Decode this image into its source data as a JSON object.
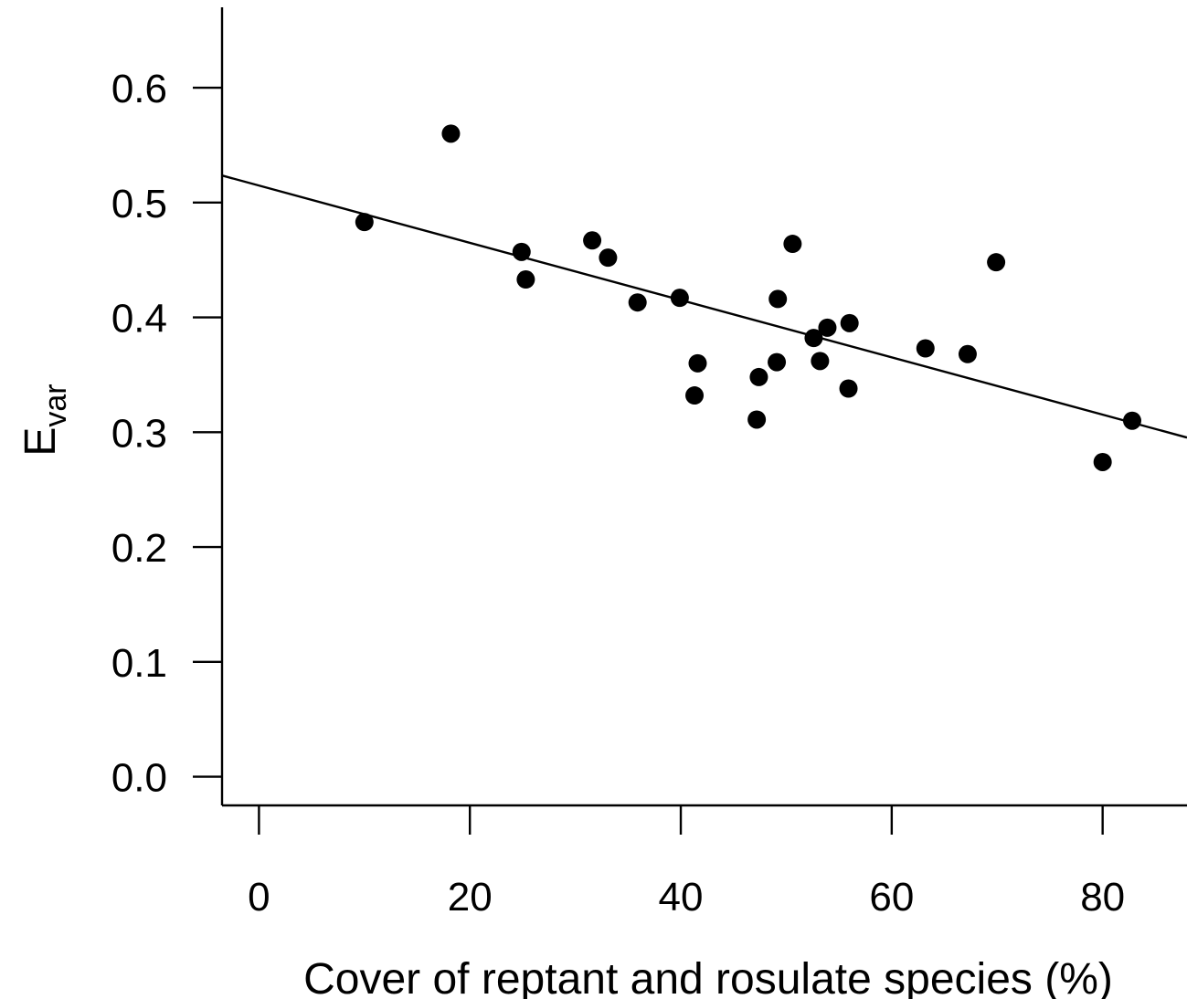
{
  "chart_data": {
    "type": "scatter",
    "xlabel": "Cover of reptant and rosulate species (%)",
    "ylabel": {
      "main": "E",
      "subscript": "var"
    },
    "xlim": [
      -3.5,
      88
    ],
    "ylim": [
      -0.025,
      0.67
    ],
    "x_ticks": [
      0,
      20,
      40,
      60,
      80
    ],
    "x_tick_labels": [
      "0",
      "20",
      "40",
      "60",
      "80"
    ],
    "y_ticks": [
      0.0,
      0.1,
      0.2,
      0.3,
      0.4,
      0.5,
      0.6
    ],
    "y_tick_labels": [
      "0.0",
      "0.1",
      "0.2",
      "0.3",
      "0.4",
      "0.5",
      "0.6"
    ],
    "grid": false,
    "legend": "none",
    "points": [
      {
        "x": 10.0,
        "y": 0.483
      },
      {
        "x": 18.2,
        "y": 0.56
      },
      {
        "x": 24.9,
        "y": 0.457
      },
      {
        "x": 25.3,
        "y": 0.433
      },
      {
        "x": 31.6,
        "y": 0.467
      },
      {
        "x": 33.1,
        "y": 0.452
      },
      {
        "x": 35.9,
        "y": 0.413
      },
      {
        "x": 39.9,
        "y": 0.417
      },
      {
        "x": 41.3,
        "y": 0.332
      },
      {
        "x": 41.6,
        "y": 0.36
      },
      {
        "x": 47.2,
        "y": 0.311
      },
      {
        "x": 47.4,
        "y": 0.348
      },
      {
        "x": 49.1,
        "y": 0.361
      },
      {
        "x": 49.2,
        "y": 0.416
      },
      {
        "x": 50.6,
        "y": 0.464
      },
      {
        "x": 52.6,
        "y": 0.382
      },
      {
        "x": 53.2,
        "y": 0.362
      },
      {
        "x": 53.9,
        "y": 0.391
      },
      {
        "x": 55.9,
        "y": 0.338
      },
      {
        "x": 56.0,
        "y": 0.395
      },
      {
        "x": 63.2,
        "y": 0.373
      },
      {
        "x": 67.2,
        "y": 0.368
      },
      {
        "x": 69.9,
        "y": 0.448
      },
      {
        "x": 80.0,
        "y": 0.274
      },
      {
        "x": 82.8,
        "y": 0.31
      }
    ],
    "fit_line": {
      "intercept": 0.5148,
      "slope": -0.002494
    }
  }
}
